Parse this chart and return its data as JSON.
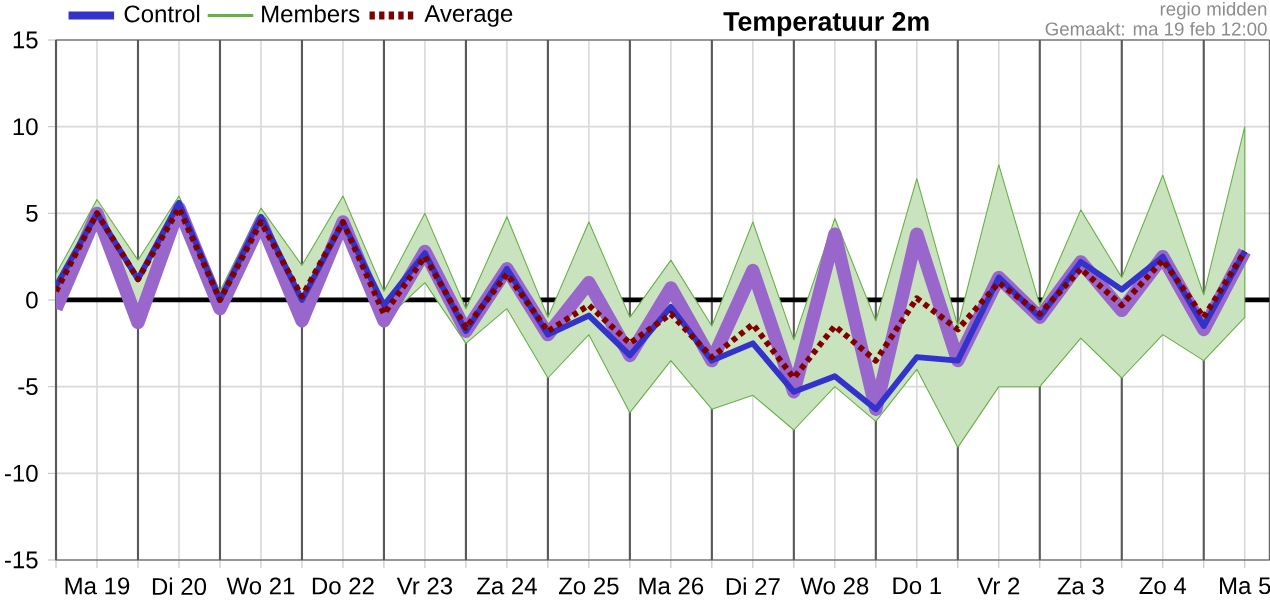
{
  "chart_data": {
    "type": "line",
    "title": "Temperatuur 2m",
    "annotations": [
      "regio midden",
      "Gemaakt: ma 19 feb 12:00"
    ],
    "categories": [
      null,
      "Ma 19",
      null,
      "Di 20",
      null,
      "Wo 21",
      null,
      "Do 22",
      null,
      "Vr 23",
      null,
      "Za 24",
      null,
      "Zo 25",
      null,
      "Ma 26",
      null,
      "Di 27",
      null,
      "Wo 28",
      null,
      "Do 1",
      null,
      "Vr 2",
      null,
      "Za 3",
      null,
      "Zo 4",
      null,
      "Ma 5"
    ],
    "ylim": [
      -15,
      15
    ],
    "yticks": [
      -15,
      -10,
      -5,
      0,
      5,
      10,
      15
    ],
    "grid": true,
    "legend": "top left",
    "ref_lines": [
      {
        "axis": "y",
        "value": 0,
        "color": "#000000"
      }
    ],
    "series": [
      {
        "name": "Members",
        "color": "#66b044",
        "values": [
          null,
          null,
          null,
          null,
          null,
          null,
          null,
          null,
          null,
          null,
          null,
          null,
          null,
          null,
          null,
          null,
          null,
          null,
          null,
          null,
          null,
          null,
          null,
          null,
          null,
          null,
          null,
          null,
          null,
          null
        ],
        "lower": [
          -0.5,
          4.5,
          -1.3,
          5,
          -0.5,
          4,
          -1.2,
          4,
          -1.2,
          1,
          -2.5,
          -0.5,
          -4.5,
          -2,
          -6.5,
          -3.5,
          -6.3,
          -5.5,
          -7.5,
          -5,
          -7,
          -4,
          -8.5,
          -5,
          -5,
          -2.2,
          -4.5,
          -2,
          -3.5,
          -1
        ],
        "upper": [
          1.5,
          5.8,
          2.3,
          6,
          0.5,
          5.3,
          2,
          6,
          0.5,
          5,
          -0.5,
          4.8,
          -1,
          4.5,
          -1,
          2.3,
          -1.5,
          4.5,
          -2.3,
          4.7,
          -1.2,
          7,
          -1.5,
          7.8,
          -0.3,
          5.2,
          1.3,
          7.2,
          0.3,
          10
        ]
      },
      {
        "color": "#9966cc",
        "values": [
          -0.5,
          5,
          -1.3,
          5.3,
          -0.5,
          4.5,
          -1.2,
          4.5,
          -1.2,
          2.8,
          -1.8,
          1.8,
          -2,
          1,
          -3.2,
          0.7,
          -3.5,
          1.7,
          -5.3,
          3.8,
          -6.3,
          3.8,
          -3.5,
          1.3,
          -1,
          2.2,
          -0.6,
          2.5,
          -1.7,
          2.8
        ]
      },
      {
        "name": "Control",
        "color": "#3333cc",
        "values": [
          0.8,
          5,
          1.2,
          5.6,
          0,
          4.8,
          0,
          4.5,
          -0.3,
          2.7,
          -1.8,
          1.8,
          -2,
          -0.9,
          -3.2,
          -0.4,
          -3.5,
          -2.5,
          -5.3,
          -4.4,
          -6.3,
          -3.3,
          -3.5,
          1.3,
          -1,
          2.2,
          0.6,
          2.5,
          -1.5,
          2.8
        ]
      },
      {
        "name": "Average",
        "color": "#800000",
        "line_style": "dotted",
        "values": [
          0.5,
          5,
          1.2,
          5.3,
          0,
          4.5,
          0.2,
          4.5,
          -0.8,
          2.5,
          -1.6,
          1.5,
          -1.8,
          -0.3,
          -2.5,
          -0.8,
          -3.3,
          -1.4,
          -4.5,
          -1.5,
          -3.5,
          0.1,
          -1.7,
          1,
          -0.8,
          1.8,
          -0.3,
          2.3,
          -1,
          2.8
        ]
      }
    ]
  }
}
